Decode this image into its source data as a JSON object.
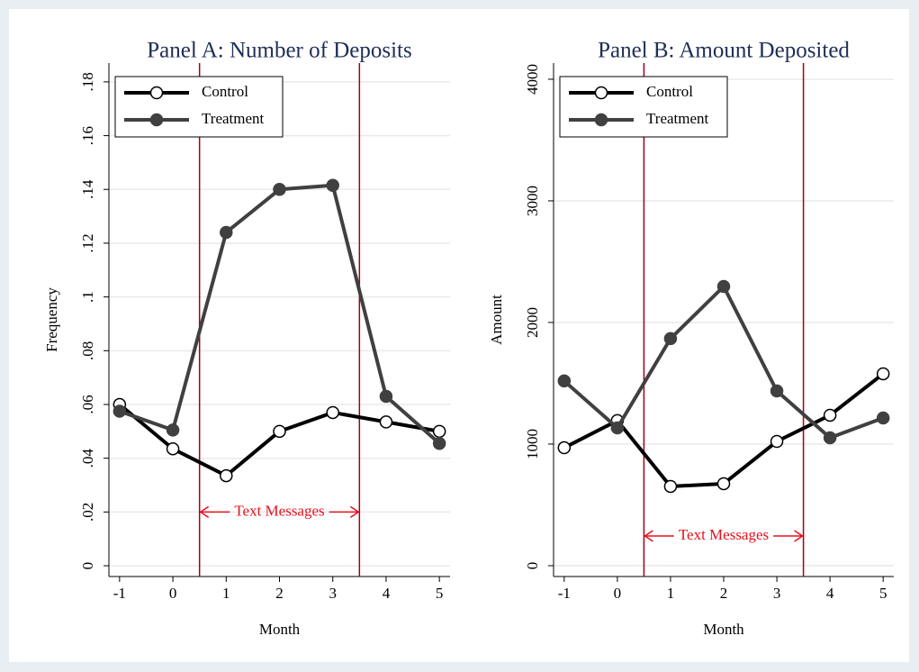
{
  "chart_data": [
    {
      "type": "line",
      "title": "Panel A: Number of Deposits",
      "xlabel": "Month",
      "ylabel": "Frequency",
      "x": [
        -1,
        0,
        1,
        2,
        3,
        4,
        5
      ],
      "series": [
        {
          "name": "Control",
          "color": "#000000",
          "marker": "hollow",
          "values": [
            0.06,
            0.0435,
            0.0335,
            0.05,
            0.057,
            0.0535,
            0.05
          ]
        },
        {
          "name": "Treatment",
          "color": "#404040",
          "marker": "filled",
          "values": [
            0.0575,
            0.0505,
            0.124,
            0.14,
            0.1415,
            0.063,
            0.0455
          ]
        }
      ],
      "xlim": [
        -1.2,
        5.2
      ],
      "ylim": [
        -0.004,
        0.187
      ],
      "xticks": [
        -1,
        0,
        1,
        2,
        3,
        4,
        5
      ],
      "yticks": [
        0,
        {
          "value": 0.02,
          "label": ".02"
        },
        {
          "value": 0.04,
          "label": ".04"
        },
        {
          "value": 0.06,
          "label": ".06"
        },
        {
          "value": 0.08,
          "label": ".08"
        },
        {
          "value": 0.1,
          "label": ".1"
        },
        {
          "value": 0.12,
          "label": ".12"
        },
        {
          "value": 0.14,
          "label": ".14"
        },
        {
          "value": 0.16,
          "label": ".16"
        },
        {
          "value": 0.18,
          "label": ".18"
        }
      ],
      "grid": true,
      "legend": "top-left",
      "annotation": {
        "text": "Text Messages",
        "x": [
          0.5,
          3.5
        ],
        "y": 0.02,
        "color": "#e8101c",
        "line_color": "#a0001c"
      }
    },
    {
      "type": "line",
      "title": "Panel B: Amount Deposited",
      "xlabel": "Month",
      "ylabel": "Amount",
      "x": [
        -1,
        0,
        1,
        2,
        3,
        4,
        5
      ],
      "series": [
        {
          "name": "Control",
          "color": "#000000",
          "marker": "hollow",
          "values": [
            970,
            1193,
            652,
            674,
            1022,
            1237,
            1578
          ]
        },
        {
          "name": "Treatment",
          "color": "#404040",
          "marker": "filled",
          "values": [
            1519,
            1133,
            1867,
            2296,
            1437,
            1052,
            1215
          ]
        }
      ],
      "xlim": [
        -1.2,
        5.2
      ],
      "ylim": [
        -89,
        4133
      ],
      "xticks": [
        -1,
        0,
        1,
        2,
        3,
        4,
        5
      ],
      "yticks": [
        0,
        1000,
        2000,
        3000,
        4000
      ],
      "grid": true,
      "legend": "top-left",
      "annotation": {
        "text": "Text Messages",
        "x": [
          0.5,
          3.5
        ],
        "y": 244,
        "color": "#e8101c",
        "line_color": "#a0001c"
      }
    }
  ]
}
